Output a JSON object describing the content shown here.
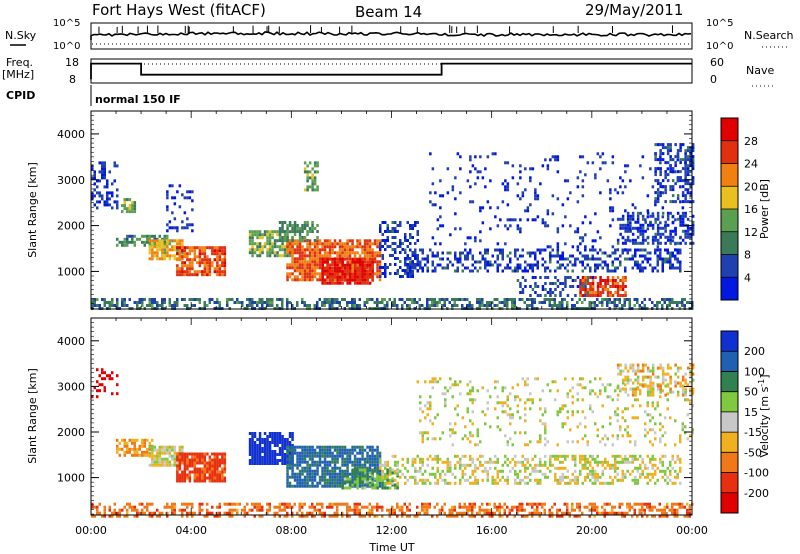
{
  "header": {
    "radar": "Fort Hays West (fitACF)",
    "beam": "Beam 14",
    "date": "29/May/2011"
  },
  "status": {
    "nsky_label": "N.Sky",
    "nsky_ticks": [
      "10^5",
      "10^0"
    ],
    "nsearch_label": "N.Search",
    "nsearch_ticks": [
      "10^5",
      "10^0"
    ],
    "freq_label_1": "Freq.",
    "freq_label_2": "[MHz]",
    "freq_ticks": [
      "18",
      "8"
    ],
    "nave_label": "Nave",
    "nave_ticks": [
      "60",
      "0"
    ],
    "cpid_label": "CPID",
    "cpid_text": "normal 150 IF",
    "freq_mhz_steps": [
      {
        "start_h": 0.0,
        "end_h": 2.0,
        "mhz": 16.5
      },
      {
        "start_h": 2.0,
        "end_h": 14.0,
        "mhz": 10.5
      },
      {
        "start_h": 14.0,
        "end_h": 24.0,
        "mhz": 16.5
      }
    ]
  },
  "panels": {
    "ylabel": "Slant Range [km]",
    "yticks": [
      "1000",
      "2000",
      "3000",
      "4000"
    ],
    "xticks": [
      "00:00",
      "04:00",
      "08:00",
      "12:00",
      "16:00",
      "20:00",
      "00:00"
    ],
    "xlabel": "Time UT"
  },
  "power_bar": {
    "label": "Power [dB]",
    "ticks": [
      "4",
      "8",
      "12",
      "16",
      "20",
      "24",
      "28"
    ],
    "colors": [
      "#0018e0",
      "#2040b0",
      "#3a7a5a",
      "#5aa050",
      "#e8c020",
      "#f08010",
      "#e03010",
      "#e00000"
    ]
  },
  "velocity_bar": {
    "label": "Velocity [m s",
    "label_sup": "-1",
    "label_end": "]",
    "ticks": [
      "200",
      "100",
      "50",
      "15",
      "-15",
      "-50",
      "-100",
      "-200"
    ],
    "colors": [
      "#1030d0",
      "#2060b0",
      "#308050",
      "#80c840",
      "#c8c8c8",
      "#f0b020",
      "#f07818",
      "#e83010",
      "#e00000"
    ]
  },
  "chart_data": {
    "type": "heatmap",
    "x_unit": "hours UT",
    "xlim": [
      0,
      24
    ],
    "y_unit": "km",
    "ylim": [
      180,
      4500
    ],
    "power_db_range": [
      0,
      32
    ],
    "velocity_range": [
      -250,
      250
    ],
    "power_regions": [
      {
        "t0": 0.0,
        "t1": 1.0,
        "r0": 2400,
        "r1": 3400,
        "val": 4,
        "density": 0.3
      },
      {
        "t0": 1.2,
        "t1": 1.7,
        "r0": 2300,
        "r1": 2600,
        "val": 14,
        "density": 0.7
      },
      {
        "t0": 1.0,
        "t1": 3.0,
        "r0": 1550,
        "r1": 1800,
        "val": 11,
        "density": 0.7
      },
      {
        "t0": 2.3,
        "t1": 3.6,
        "r0": 1300,
        "r1": 1700,
        "val": 19,
        "density": 0.8
      },
      {
        "t0": 3.4,
        "t1": 5.3,
        "r0": 950,
        "r1": 1550,
        "val": 25,
        "density": 0.85
      },
      {
        "t0": 3.0,
        "t1": 4.0,
        "r0": 1900,
        "r1": 2900,
        "val": 4,
        "density": 0.25
      },
      {
        "t0": 6.3,
        "t1": 8.0,
        "r0": 1350,
        "r1": 1900,
        "val": 14,
        "density": 0.7
      },
      {
        "t0": 7.8,
        "t1": 11.5,
        "r0": 800,
        "r1": 1700,
        "val": 24,
        "density": 0.8
      },
      {
        "t0": 9.2,
        "t1": 11.2,
        "r0": 750,
        "r1": 1300,
        "val": 29,
        "density": 0.85
      },
      {
        "t0": 7.5,
        "t1": 9.0,
        "r0": 1700,
        "r1": 2100,
        "val": 12,
        "density": 0.6
      },
      {
        "t0": 8.5,
        "t1": 9.0,
        "r0": 2800,
        "r1": 3400,
        "val": 14,
        "density": 0.5
      },
      {
        "t0": 11.5,
        "t1": 13.0,
        "r0": 900,
        "r1": 2100,
        "val": 5,
        "density": 0.4
      },
      {
        "t0": 12.5,
        "t1": 23.5,
        "r0": 1000,
        "r1": 1500,
        "val": 5,
        "density": 0.45
      },
      {
        "t0": 17.0,
        "t1": 20.0,
        "r0": 500,
        "r1": 900,
        "val": 6,
        "density": 0.35
      },
      {
        "t0": 19.5,
        "t1": 21.3,
        "r0": 450,
        "r1": 900,
        "val": 26,
        "density": 0.7
      },
      {
        "t0": 21.0,
        "t1": 24.0,
        "r0": 1600,
        "r1": 2300,
        "val": 5,
        "density": 0.5
      },
      {
        "t0": 22.5,
        "t1": 24.0,
        "r0": 2500,
        "r1": 3800,
        "val": 5,
        "density": 0.45
      },
      {
        "t0": 0.0,
        "t1": 24.0,
        "r0": 180,
        "r1": 420,
        "val": 9,
        "density": 0.55
      },
      {
        "t0": 13.5,
        "t1": 24.0,
        "r0": 1500,
        "r1": 3600,
        "val": 4,
        "density": 0.08
      }
    ],
    "velocity_regions": [
      {
        "t0": 0.0,
        "t1": 1.0,
        "r0": 2800,
        "r1": 3400,
        "val": -180,
        "density": 0.25
      },
      {
        "t0": 1.0,
        "t1": 2.4,
        "r0": 1500,
        "r1": 1850,
        "val": -40,
        "density": 0.7
      },
      {
        "t0": 2.3,
        "t1": 3.6,
        "r0": 1300,
        "r1": 1700,
        "val": 0,
        "density": 0.8
      },
      {
        "t0": 3.4,
        "t1": 5.3,
        "r0": 950,
        "r1": 1550,
        "val": -90,
        "density": 0.85
      },
      {
        "t0": 6.3,
        "t1": 8.0,
        "r0": 1300,
        "r1": 2000,
        "val": 180,
        "density": 0.8
      },
      {
        "t0": 7.8,
        "t1": 11.5,
        "r0": 800,
        "r1": 1700,
        "val": 90,
        "density": 0.8
      },
      {
        "t0": 10.0,
        "t1": 12.2,
        "r0": 750,
        "r1": 1200,
        "val": 35,
        "density": 0.6
      },
      {
        "t0": 11.5,
        "t1": 23.5,
        "r0": 900,
        "r1": 1500,
        "val": 0,
        "density": 0.45
      },
      {
        "t0": 13.0,
        "t1": 24.0,
        "r0": 1700,
        "r1": 3200,
        "val": 0,
        "density": 0.15
      },
      {
        "t0": 21.0,
        "t1": 24.0,
        "r0": 2800,
        "r1": 3500,
        "val": -10,
        "density": 0.45
      },
      {
        "t0": 0.0,
        "t1": 24.0,
        "r0": 180,
        "r1": 450,
        "val": -60,
        "density": 0.5
      }
    ]
  }
}
